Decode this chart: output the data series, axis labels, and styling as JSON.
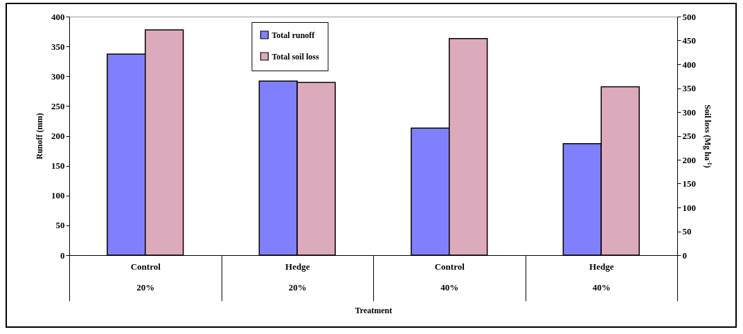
{
  "chart_data": {
    "type": "bar",
    "xlabel": "Treatment",
    "ylabel": "Runoff (mm)",
    "y2label": "Soil loss (Mg ha$^{-1}$)",
    "categories": [
      "Control\n20%",
      "Hedge\n20%",
      "Control\n40%",
      "Hedge\n40%"
    ],
    "series": [
      {
        "name": "Total runoff",
        "color": "#8080ff",
        "values": [
          337,
          292,
          213,
          187
        ]
      },
      {
        "name": "Total soil loss",
        "color": "#dcaabc",
        "axis": "y2",
        "values": [
          472,
          362,
          454,
          353
        ]
      }
    ],
    "ylim": [
      0,
      400
    ],
    "yticks": [
      0,
      50,
      100,
      150,
      200,
      250,
      300,
      350,
      400
    ],
    "y2lim": [
      0,
      500
    ],
    "y2ticks": [
      0,
      50,
      100,
      150,
      200,
      250,
      300,
      350,
      400,
      450,
      500
    ],
    "legend": "top"
  }
}
